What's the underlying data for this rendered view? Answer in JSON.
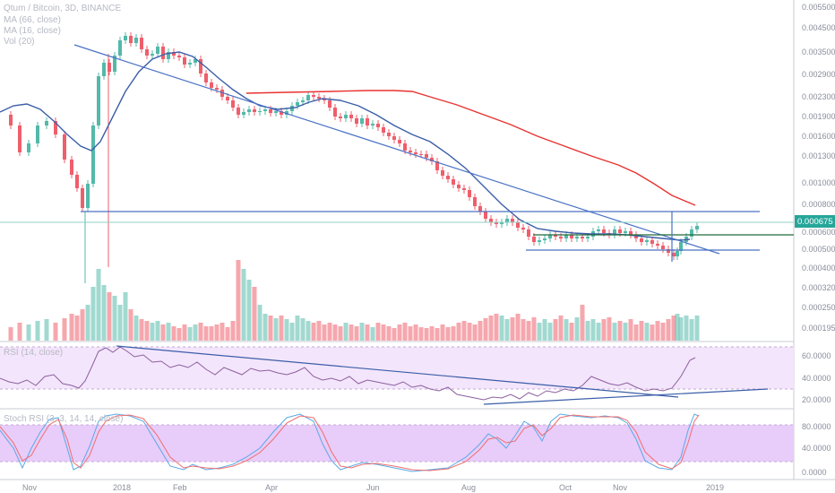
{
  "chart_data": {
    "type": "candlestick",
    "title": "Qtum / Bitcoin, 3D, BINANCE",
    "indicators": {
      "ma66": "MA (66, close)",
      "ma16": "MA (16, close)",
      "vol": "Vol (20)",
      "rsi": "RSI (14, close)",
      "stoch": "Stoch RSI (3, 3, 14, 14, close)"
    },
    "price_axis": {
      "scale": "log",
      "ticks": [
        "0.005500",
        "0.004500",
        "0.003500",
        "0.002900",
        "0.002300",
        "0.001900",
        "0.001600",
        "0.001300",
        "0.001000",
        "0.000800",
        "0.000600",
        "0.000500",
        "0.000400",
        "0.000320",
        "0.000250",
        "0.000195"
      ]
    },
    "rsi_axis": {
      "ticks": [
        "60.0000",
        "40.0000",
        "20.0000"
      ],
      "band": [
        30,
        70
      ]
    },
    "stoch_axis": {
      "ticks": [
        "80.0000",
        "40.0000",
        "0.0000"
      ],
      "band": [
        20,
        80
      ]
    },
    "x_ticks": [
      "Nov",
      "2018",
      "Feb",
      "Apr",
      "Jun",
      "Aug",
      "Oct",
      "Nov",
      "2019"
    ],
    "last_price": "0.000675",
    "horizontal_levels": [
      0.00075,
      0.0006,
      0.00049
    ],
    "colors": {
      "up": "#53b9a9",
      "down": "#ef5e6b",
      "ma66": "#e8332f",
      "ma16": "#3b5ea8",
      "trendline": "#4a72c4",
      "level_green": "#1e6b3a",
      "rsi_line": "#8c5f9e",
      "rsi_band": "#f3e5fb",
      "stoch_band": "#e8ccfa",
      "stoch_k": "#5aa9e6",
      "stoch_d": "#ef6e6e",
      "price_label_bg": "#26a69a"
    }
  }
}
